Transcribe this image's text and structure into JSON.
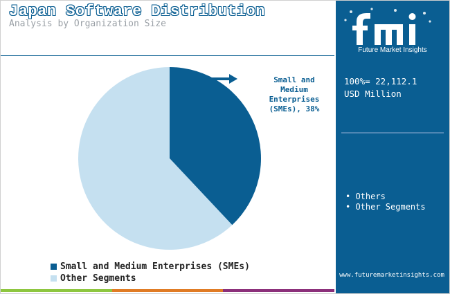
{
  "header": {
    "title": "Japan Software Distribution",
    "subtitle": "Analysis by Organization Size"
  },
  "chart_data": {
    "type": "pie",
    "categories": [
      "Small and Medium Enterprises (SMEs)",
      "Other Segments"
    ],
    "values": [
      38,
      62
    ],
    "colors": [
      "#0a5e92",
      "#c5e0f0"
    ],
    "start_angle_deg": 0,
    "direction": "clockwise",
    "annotation": {
      "line1": "Small and",
      "line2": "Medium",
      "line3": "Enterprises",
      "line4": "(SMEs), 38%"
    },
    "legend": {
      "placement": "bottom-left",
      "items": [
        "Small and Medium Enterprises (SMEs)",
        "Other Segments"
      ]
    }
  },
  "sidebar": {
    "logo_caption": "Future Market Insights",
    "total_line1": "100%= 22,112.1",
    "total_line2": "USD Million",
    "bullets": [
      "Others",
      "Other Segments"
    ],
    "url": "www.futuremarketinsights.com"
  },
  "footer_colors": [
    "#8dc63f",
    "#e07b24",
    "#8b2f7a"
  ]
}
